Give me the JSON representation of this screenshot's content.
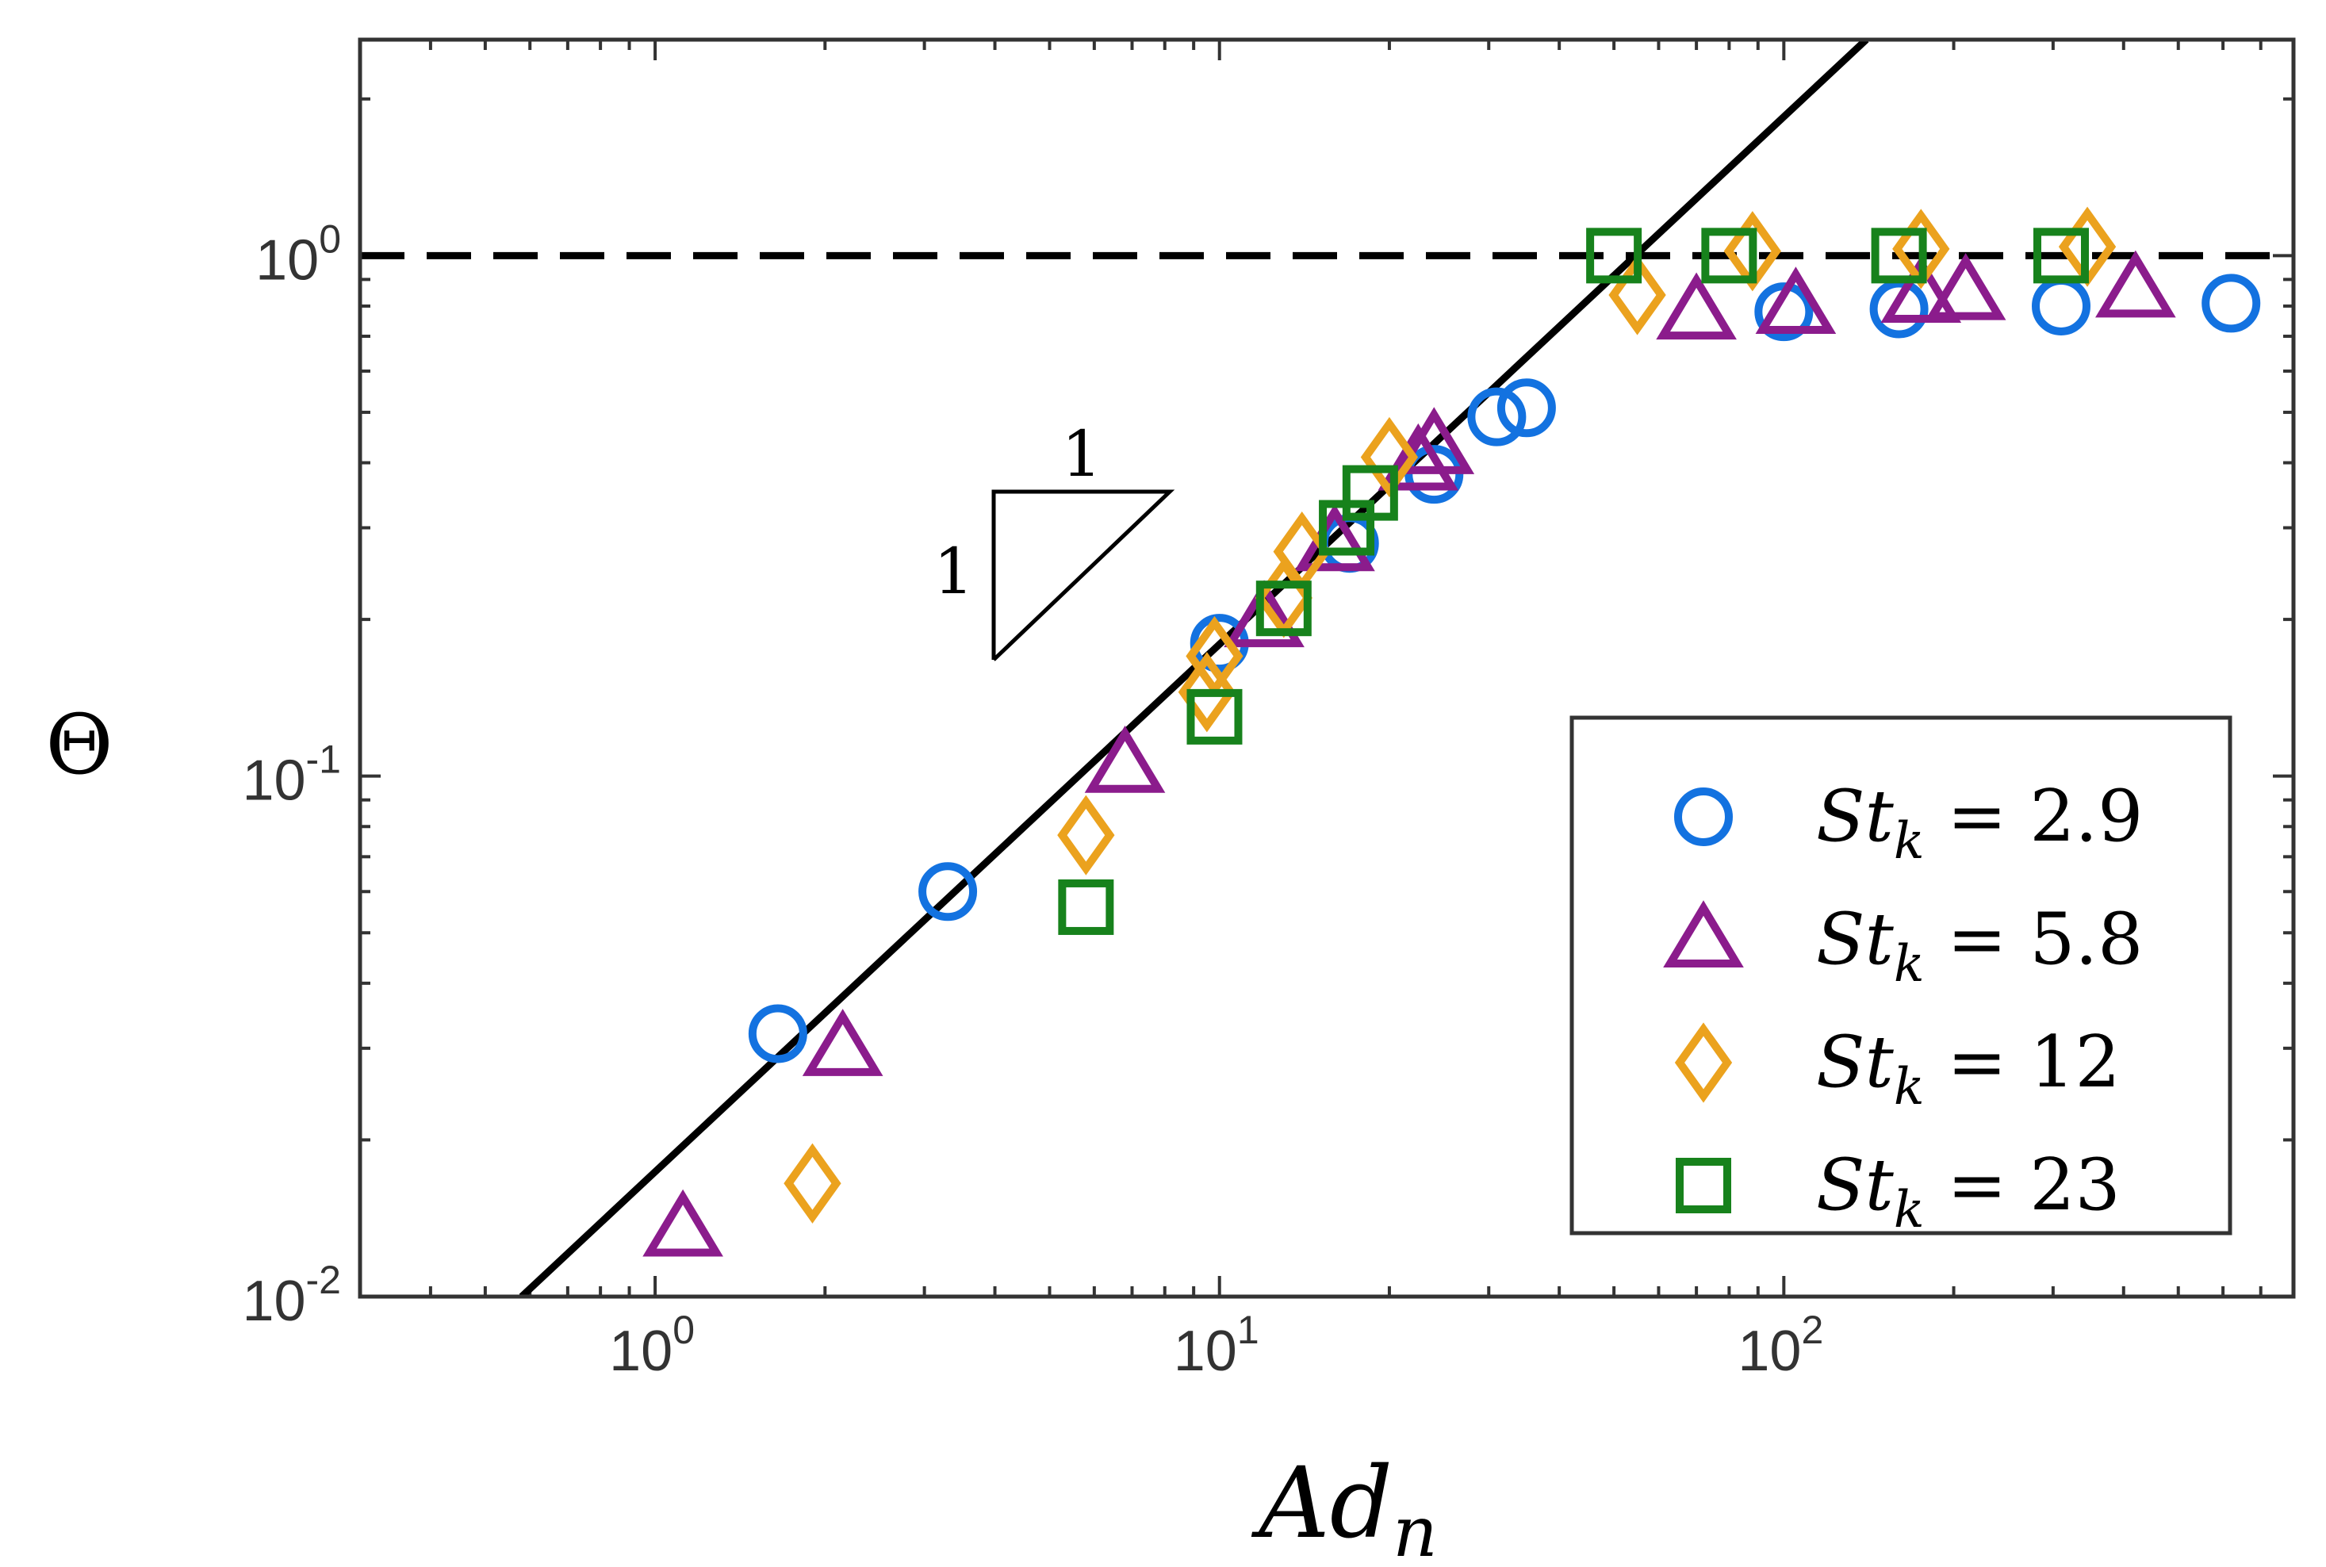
{
  "chart_data": {
    "type": "scatter",
    "x_scale": "log",
    "y_scale": "log",
    "xlim": [
      0.3,
      800
    ],
    "ylim": [
      0.01,
      2.6
    ],
    "xlabel": {
      "base": "Ad",
      "subscript": "n"
    },
    "ylabel": "Θ",
    "x_ticks": [
      {
        "value": 1,
        "base": "10",
        "exp": "0"
      },
      {
        "value": 10,
        "base": "10",
        "exp": "1"
      },
      {
        "value": 100,
        "base": "10",
        "exp": "2"
      }
    ],
    "y_ticks": [
      {
        "value": 0.01,
        "base": "10",
        "exp": "-2"
      },
      {
        "value": 0.1,
        "base": "10",
        "exp": "-1"
      },
      {
        "value": 1,
        "base": "10",
        "exp": "0"
      }
    ],
    "reference_lines": [
      {
        "name": "slope-one-fit",
        "style": "solid",
        "color": "#000000",
        "x": [
          0.58,
          140
        ],
        "y": [
          0.01,
          2.6
        ]
      },
      {
        "name": "saturation",
        "style": "dashed",
        "color": "#000000",
        "y_value": 1.0
      }
    ],
    "slope_triangle": {
      "run_label": "1",
      "rise_label": "1"
    },
    "series": [
      {
        "name": "St_k = 2.9",
        "marker": "circle",
        "color": "#1372E0",
        "legend": {
          "base": "St",
          "subscript": "k",
          "value": "2.9"
        },
        "points": [
          [
            1.65,
            0.032
          ],
          [
            3.3,
            0.06
          ],
          [
            10.0,
            0.18
          ],
          [
            17.0,
            0.28
          ],
          [
            24.0,
            0.38
          ],
          [
            31.0,
            0.49
          ],
          [
            35.0,
            0.51
          ],
          [
            100.0,
            0.78
          ],
          [
            160.0,
            0.79
          ],
          [
            310.0,
            0.8
          ],
          [
            620.0,
            0.81
          ]
        ]
      },
      {
        "name": "St_k = 5.8",
        "marker": "triangle",
        "color": "#8B1C8C",
        "legend": {
          "base": "St",
          "subscript": "k",
          "value": "5.8"
        },
        "points": [
          [
            1.12,
            0.0135
          ],
          [
            2.15,
            0.03
          ],
          [
            6.8,
            0.105
          ],
          [
            12.0,
            0.2
          ],
          [
            16.0,
            0.28
          ],
          [
            22.5,
            0.4
          ],
          [
            24.0,
            0.43
          ],
          [
            70.0,
            0.78
          ],
          [
            105.0,
            0.8
          ],
          [
            175.0,
            0.84
          ],
          [
            210.0,
            0.85
          ],
          [
            420.0,
            0.86
          ]
        ]
      },
      {
        "name": "St_k = 12",
        "marker": "diamond",
        "color": "#EBA21E",
        "legend": {
          "base": "St",
          "subscript": "k",
          "value": "12"
        },
        "points": [
          [
            1.9,
            0.0165
          ],
          [
            5.8,
            0.077
          ],
          [
            9.5,
            0.145
          ],
          [
            9.8,
            0.17
          ],
          [
            13.0,
            0.22
          ],
          [
            14.0,
            0.27
          ],
          [
            20.0,
            0.41
          ],
          [
            55.0,
            0.84
          ],
          [
            88.0,
            1.02
          ],
          [
            175.0,
            1.03
          ],
          [
            345.0,
            1.04
          ]
        ]
      },
      {
        "name": "St_k = 23",
        "marker": "square",
        "color": "#17821C",
        "legend": {
          "base": "St",
          "subscript": "k",
          "value": "23"
        },
        "points": [
          [
            5.8,
            0.056
          ],
          [
            9.8,
            0.13
          ],
          [
            13.0,
            0.21
          ],
          [
            16.8,
            0.3
          ],
          [
            18.5,
            0.35
          ],
          [
            50.0,
            1.0
          ],
          [
            80.0,
            1.0
          ],
          [
            160.0,
            1.0
          ],
          [
            310.0,
            1.0
          ]
        ]
      }
    ],
    "legend_position": "bottom-right"
  }
}
